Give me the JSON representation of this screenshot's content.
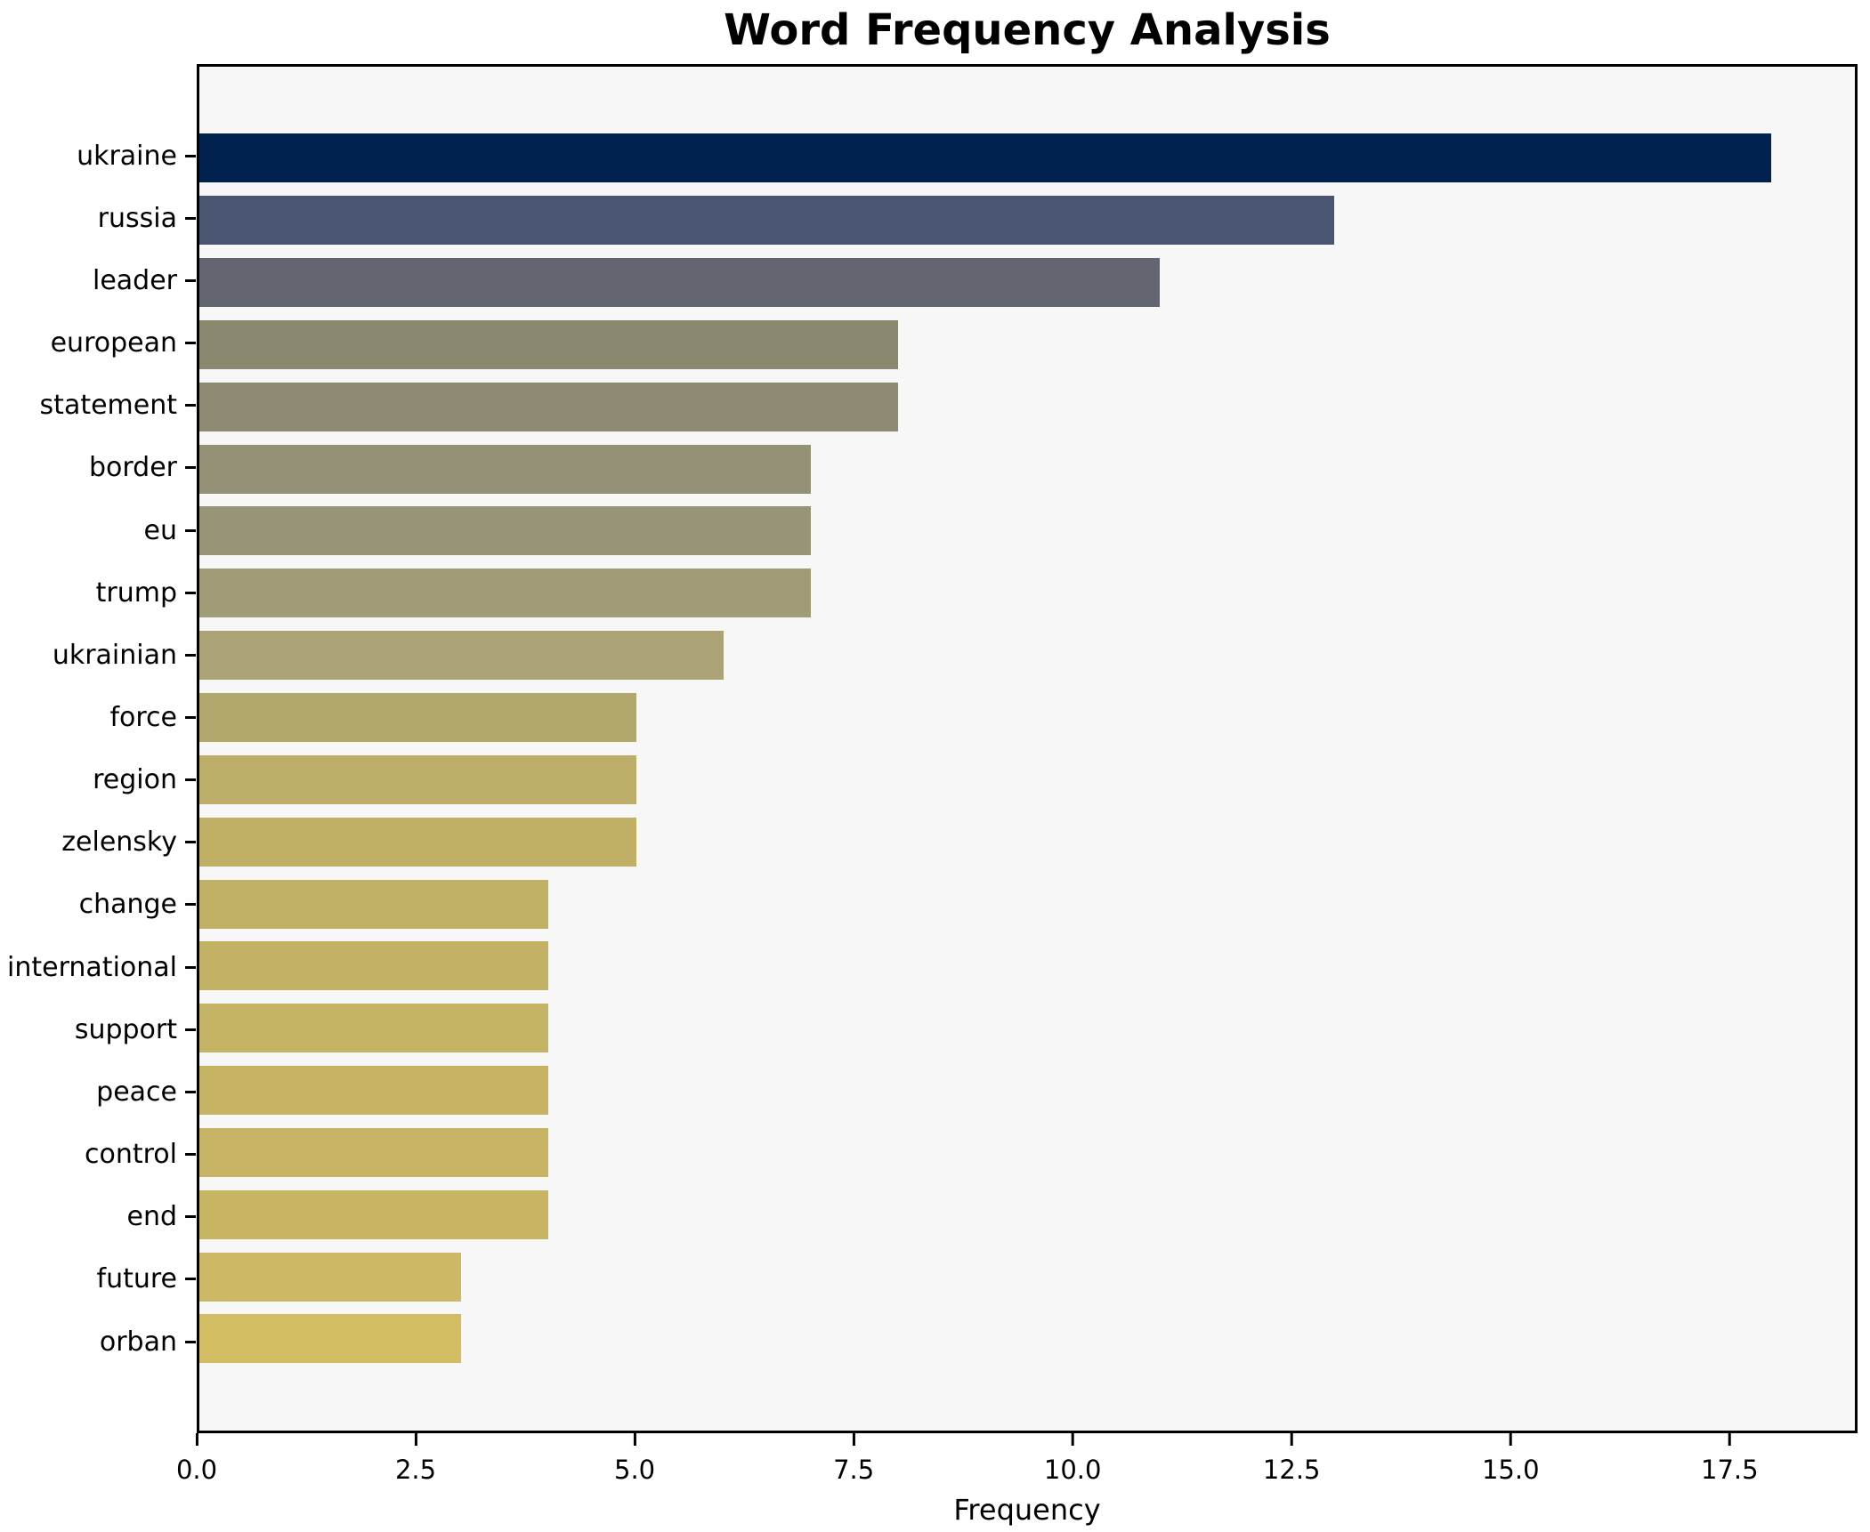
{
  "title": "Word Frequency Analysis",
  "chart_data": {
    "type": "bar",
    "orientation": "horizontal",
    "title": "Word Frequency Analysis",
    "xlabel": "Frequency",
    "ylabel": "",
    "grid": false,
    "legend_position": "none",
    "plot_background": "#f7f7f7",
    "figure_background": "#ffffff",
    "spine_color": "#000000",
    "xlim": [
      0,
      18.96
    ],
    "x_ticks": [
      0.0,
      2.5,
      5.0,
      7.5,
      10.0,
      12.5,
      15.0,
      17.5
    ],
    "x_tick_labels": [
      "0.0",
      "2.5",
      "5.0",
      "7.5",
      "10.0",
      "12.5",
      "15.0",
      "17.5"
    ],
    "categories": [
      "ukraine",
      "russia",
      "leader",
      "european",
      "statement",
      "border",
      "eu",
      "trump",
      "ukrainian",
      "force",
      "region",
      "zelensky",
      "change",
      "international",
      "support",
      "peace",
      "control",
      "end",
      "future",
      "orban"
    ],
    "values": [
      18,
      13,
      11,
      8,
      8,
      7,
      7,
      7,
      6,
      5,
      5,
      5,
      4,
      4,
      4,
      4,
      4,
      4,
      3,
      3
    ],
    "bar_colors": [
      "#01224e",
      "#4a5571",
      "#636571",
      "#8a8970",
      "#8e8b72",
      "#949176",
      "#989478",
      "#a19c78",
      "#aba276",
      "#b2a86d",
      "#bcad68",
      "#bfb066",
      "#c1b166",
      "#c3b266",
      "#c5b365",
      "#c6b464",
      "#c7b464",
      "#c8b564",
      "#cdb965",
      "#d2bd62"
    ]
  }
}
